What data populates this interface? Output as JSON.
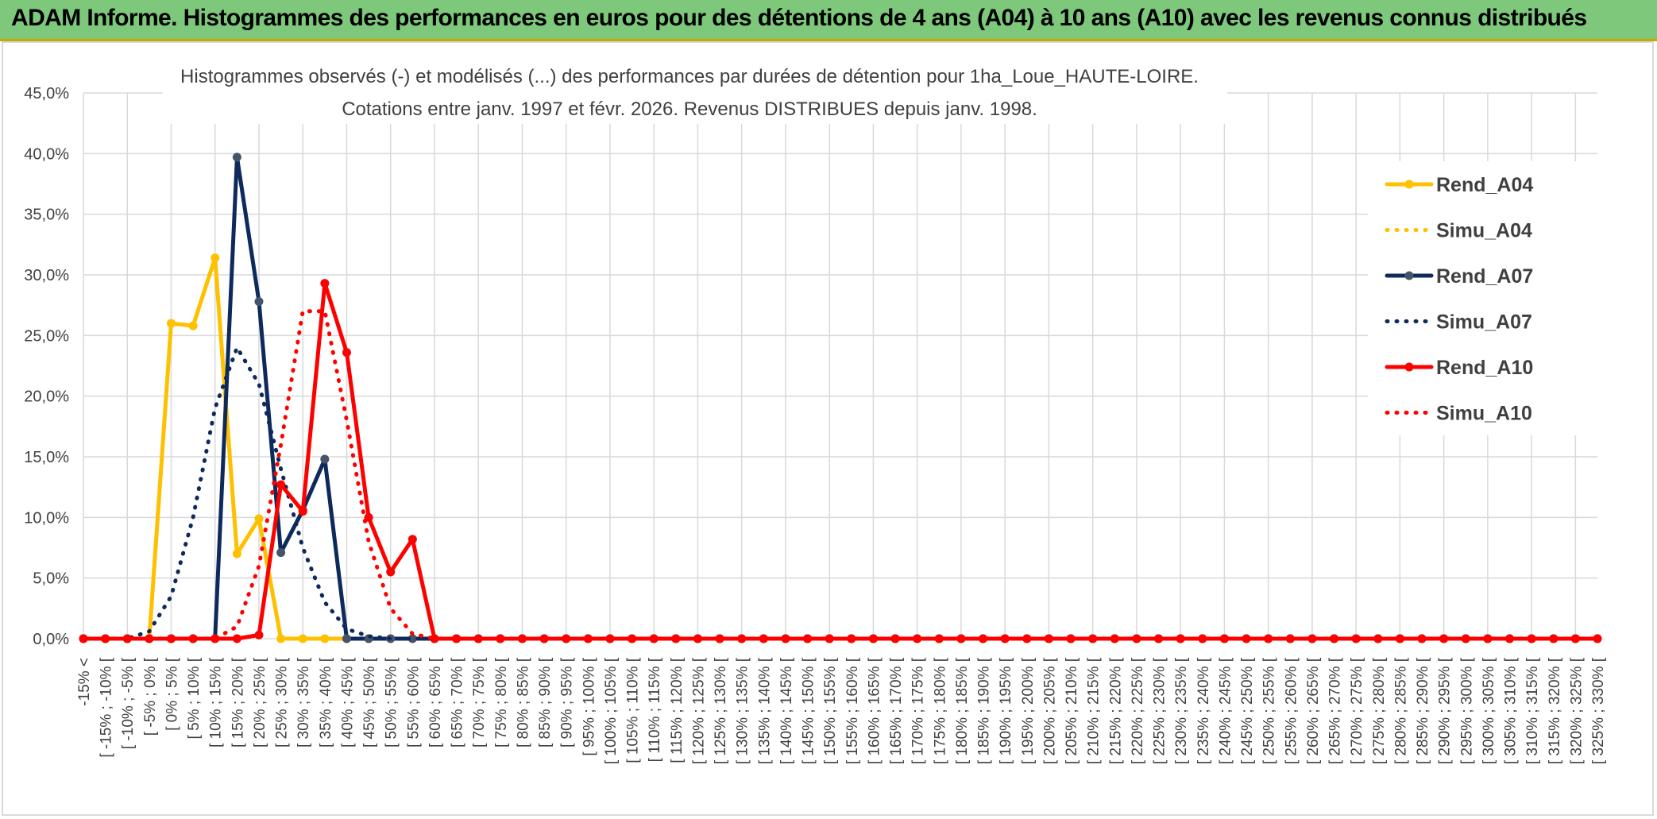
{
  "header": {
    "title": "ADAM Informe. Histogrammes des performances en euros pour des détentions de 4 ans (A04) à 10 ans (A10) avec les revenus connus distribués"
  },
  "chart_data": {
    "type": "line",
    "title": "Histogrammes observés (-) et modélisés (...) des performances par durées de détention pour 1ha_Loue_HAUTE-LOIRE.",
    "subtitle": "Cotations entre janv. 1997 et févr. 2026. Revenus DISTRIBUES depuis janv. 1998.",
    "xlabel": "",
    "ylabel": "",
    "ylim": [
      0,
      0.45
    ],
    "yticks": [
      "0,0%",
      "5,0%",
      "10,0%",
      "15,0%",
      "20,0%",
      "25,0%",
      "30,0%",
      "35,0%",
      "40,0%",
      "45,0%"
    ],
    "grid": true,
    "legend_position": "right",
    "categories": [
      "-15% <",
      "[ -15% ; -10% [",
      "[ -10% ; -5% [",
      "[ -5% ; 0% [",
      "[ 0% ; 5% [",
      "[ 5% ; 10% [",
      "[ 10% ; 15% [",
      "[ 15% ; 20% [",
      "[ 20% ; 25% [",
      "[ 25% ; 30% [",
      "[ 30% ; 35% [",
      "[ 35% ; 40% [",
      "[ 40% ; 45% [",
      "[ 45% ; 50% [",
      "[ 50% ; 55% [",
      "[ 55% ; 60% [",
      "[ 60% ; 65% [",
      "[ 65% ; 70% [",
      "[ 70% ; 75% [",
      "[ 75% ; 80% [",
      "[ 80% ; 85% [",
      "[ 85% ; 90% [",
      "[ 90% ; 95% [",
      "[ 95% ; 100% [",
      "[ 100% ; 105% [",
      "[ 105% ; 110% [",
      "[ 110% ; 115% [",
      "[ 115% ; 120% [",
      "[ 120% ; 125% [",
      "[ 125% ; 130% [",
      "[ 130% ; 135% [",
      "[ 135% ; 140% [",
      "[ 140% ; 145% [",
      "[ 145% ; 150% [",
      "[ 150% ; 155% [",
      "[ 155% ; 160% [",
      "[ 160% ; 165% [",
      "[ 165% ; 170% [",
      "[ 170% ; 175% [",
      "[ 175% ; 180% [",
      "[ 180% ; 185% [",
      "[ 185% ; 190% [",
      "[ 190% ; 195% [",
      "[ 195% ; 200% [",
      "[ 200% ; 205% [",
      "[ 205% ; 210% [",
      "[ 210% ; 215% [",
      "[ 215% ; 220% [",
      "[ 220% ; 225% [",
      "[ 225% ; 230% [",
      "[ 230% ; 235% [",
      "[ 235% ; 240% [",
      "[ 240% ; 245% [",
      "[ 245% ; 250% [",
      "[ 250% ; 255% [",
      "[ 255% ; 260% [",
      "[ 260% ; 265% [",
      "[ 265% ; 270% [",
      "[ 270% ; 275% [",
      "[ 275% ; 280% [",
      "[ 280% ; 285% [",
      "[ 285% ; 290% [",
      "[ 290% ; 295% [",
      "[ 295% ; 300% [",
      "[ 300% ; 305% [",
      "[ 305% ; 310% [",
      "[ 310% ; 315% [",
      "[ 315% ; 320% [",
      "[ 320% ; 325% [",
      "[ 325% ; 330% ["
    ],
    "series": [
      {
        "name": "Rend_A04",
        "style": "solid",
        "markers": true,
        "color": "#ffc000",
        "values": [
          0,
          0,
          0,
          0,
          0.26,
          0.258,
          0.314,
          0.07,
          0.099,
          0,
          0,
          0,
          0,
          0,
          0,
          0,
          0,
          0,
          0,
          0,
          0,
          0,
          0,
          0,
          0,
          0,
          0,
          0,
          0,
          0,
          0,
          0,
          0,
          0,
          0,
          0,
          0,
          0,
          0,
          0,
          0,
          0,
          0,
          0,
          0,
          0,
          0,
          0,
          0,
          0,
          0,
          0,
          0,
          0,
          0,
          0,
          0,
          0,
          0,
          0,
          0,
          0,
          0,
          0,
          0,
          0,
          0,
          0,
          0,
          0
        ]
      },
      {
        "name": "Simu_A04",
        "style": "dotted",
        "markers": false,
        "color": "#ffc000",
        "values": [
          0,
          0,
          0,
          0,
          0.26,
          0.258,
          0.314,
          0.07,
          0.099,
          0,
          0,
          0,
          0,
          0,
          0,
          0,
          0,
          0,
          0,
          0,
          0,
          0,
          0,
          0,
          0,
          0,
          0,
          0,
          0,
          0,
          0,
          0,
          0,
          0,
          0,
          0,
          0,
          0,
          0,
          0,
          0,
          0,
          0,
          0,
          0,
          0,
          0,
          0,
          0,
          0,
          0,
          0,
          0,
          0,
          0,
          0,
          0,
          0,
          0,
          0,
          0,
          0,
          0,
          0,
          0,
          0,
          0,
          0,
          0,
          0
        ]
      },
      {
        "name": "Rend_A07",
        "style": "solid",
        "markers": true,
        "color": "#0e2a5c",
        "values": [
          0,
          0,
          0,
          0,
          0,
          0,
          0,
          0.397,
          0.278,
          0.071,
          0.106,
          0.148,
          0,
          0,
          0,
          0,
          0,
          0,
          0,
          0,
          0,
          0,
          0,
          0,
          0,
          0,
          0,
          0,
          0,
          0,
          0,
          0,
          0,
          0,
          0,
          0,
          0,
          0,
          0,
          0,
          0,
          0,
          0,
          0,
          0,
          0,
          0,
          0,
          0,
          0,
          0,
          0,
          0,
          0,
          0,
          0,
          0,
          0,
          0,
          0,
          0,
          0,
          0,
          0,
          0,
          0,
          0,
          0,
          0,
          0
        ]
      },
      {
        "name": "Simu_A07",
        "style": "dotted",
        "markers": false,
        "color": "#0e2a5c",
        "values": [
          0,
          0,
          0,
          0.006,
          0.035,
          0.1,
          0.19,
          0.24,
          0.21,
          0.14,
          0.075,
          0.03,
          0.008,
          0.002,
          0,
          0,
          0,
          0,
          0,
          0,
          0,
          0,
          0,
          0,
          0,
          0,
          0,
          0,
          0,
          0,
          0,
          0,
          0,
          0,
          0,
          0,
          0,
          0,
          0,
          0,
          0,
          0,
          0,
          0,
          0,
          0,
          0,
          0,
          0,
          0,
          0,
          0,
          0,
          0,
          0,
          0,
          0,
          0,
          0,
          0,
          0,
          0,
          0,
          0,
          0,
          0,
          0,
          0,
          0,
          0
        ]
      },
      {
        "name": "Rend_A10",
        "style": "solid",
        "markers": true,
        "color": "#ff0000",
        "values": [
          0,
          0,
          0,
          0,
          0,
          0,
          0,
          0,
          0.003,
          0.127,
          0.105,
          0.293,
          0.236,
          0.1,
          0.055,
          0.082,
          0,
          0,
          0,
          0,
          0,
          0,
          0,
          0,
          0,
          0,
          0,
          0,
          0,
          0,
          0,
          0,
          0,
          0,
          0,
          0,
          0,
          0,
          0,
          0,
          0,
          0,
          0,
          0,
          0,
          0,
          0,
          0,
          0,
          0,
          0,
          0,
          0,
          0,
          0,
          0,
          0,
          0,
          0,
          0,
          0,
          0,
          0,
          0,
          0,
          0,
          0,
          0,
          0,
          0
        ]
      },
      {
        "name": "Simu_A10",
        "style": "dotted",
        "markers": false,
        "color": "#ff0000",
        "values": [
          0,
          0,
          0,
          0,
          0,
          0,
          0,
          0.01,
          0.06,
          0.16,
          0.27,
          0.27,
          0.18,
          0.08,
          0.025,
          0.004,
          0,
          0,
          0,
          0,
          0,
          0,
          0,
          0,
          0,
          0,
          0,
          0,
          0,
          0,
          0,
          0,
          0,
          0,
          0,
          0,
          0,
          0,
          0,
          0,
          0,
          0,
          0,
          0,
          0,
          0,
          0,
          0,
          0,
          0,
          0,
          0,
          0,
          0,
          0,
          0,
          0,
          0,
          0,
          0,
          0,
          0,
          0,
          0,
          0,
          0,
          0,
          0,
          0,
          0
        ]
      }
    ]
  }
}
